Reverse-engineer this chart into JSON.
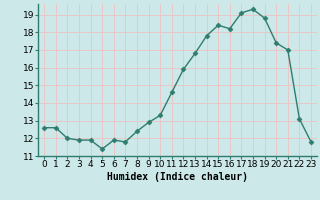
{
  "x": [
    0,
    1,
    2,
    3,
    4,
    5,
    6,
    7,
    8,
    9,
    10,
    11,
    12,
    13,
    14,
    15,
    16,
    17,
    18,
    19,
    20,
    21,
    22,
    23
  ],
  "y": [
    12.6,
    12.6,
    12.0,
    11.9,
    11.9,
    11.4,
    11.9,
    11.8,
    12.4,
    12.9,
    13.3,
    14.6,
    15.9,
    16.8,
    17.8,
    18.4,
    18.2,
    19.1,
    19.3,
    18.8,
    17.4,
    17.0,
    13.1,
    11.8
  ],
  "xlabel": "Humidex (Indice chaleur)",
  "ylim": [
    11,
    19.6
  ],
  "yticks": [
    11,
    12,
    13,
    14,
    15,
    16,
    17,
    18,
    19
  ],
  "xlim": [
    -0.5,
    23.5
  ],
  "line_color": "#2e7d6e",
  "marker_color": "#2e7d6e",
  "bg_color": "#cce8e8",
  "grid_color": "#e8c8c8",
  "xlabel_fontsize": 7,
  "tick_fontsize": 6.5,
  "xlabel_fontweight": "bold"
}
